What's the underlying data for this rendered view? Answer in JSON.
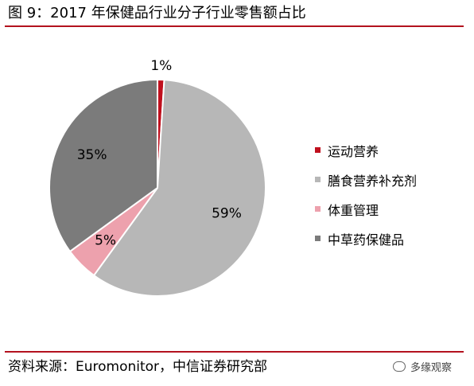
{
  "title": "图 9：2017 年保健品行业分子行业零售额占比",
  "source": "资料来源：Euromonitor，中信证券研究部",
  "watermark": "多缘观察",
  "colors": {
    "accent_rule": "#b3121e"
  },
  "chart_data": {
    "type": "pie",
    "categories": [
      "运动营养",
      "膳食营养补充剂",
      "体重管理",
      "中草药保健品"
    ],
    "values": [
      1,
      59,
      5,
      35
    ],
    "labels": [
      "1%",
      "59%",
      "5%",
      "35%"
    ],
    "colors": [
      "#c0101e",
      "#b7b7b7",
      "#eda1ad",
      "#7b7b7b"
    ],
    "start_angle": "12 o'clock",
    "direction": "clockwise",
    "legend_position": "right"
  }
}
